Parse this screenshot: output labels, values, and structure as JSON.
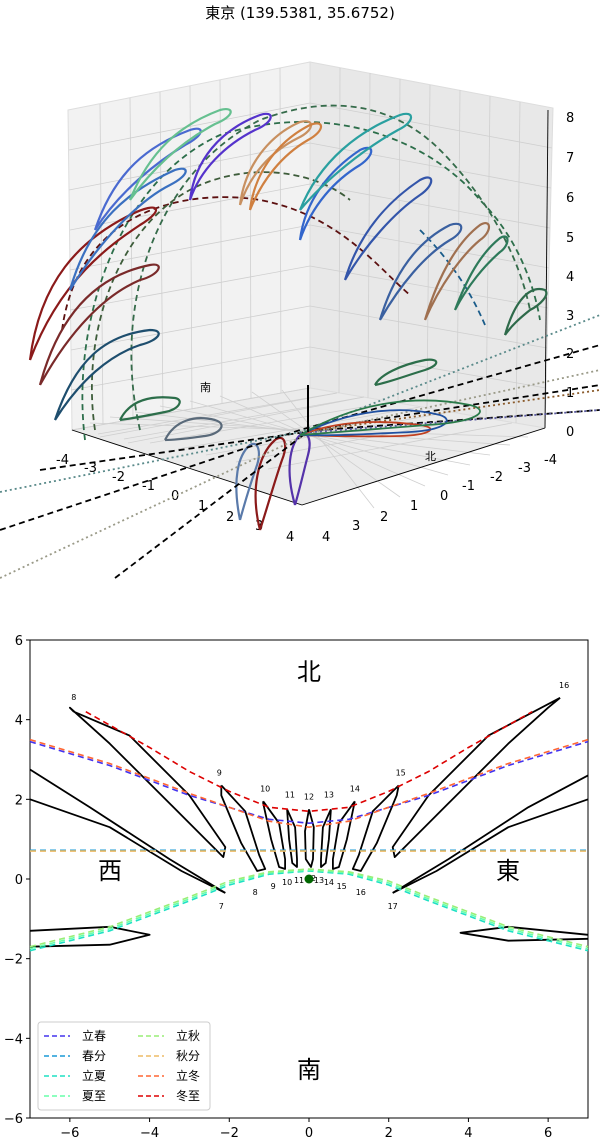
{
  "chart_data": [
    {
      "type": "3d-line",
      "title": "東京 (139.5381, 35.6752)",
      "direction_labels": {
        "south": "南",
        "north": "北"
      },
      "x_ticks": [
        "-4",
        "-3",
        "-2",
        "-1",
        "0",
        "1",
        "2",
        "3",
        "4"
      ],
      "y_ticks": [
        "-4",
        "-3",
        "-2",
        "-1",
        "0",
        "1",
        "2",
        "3",
        "4"
      ],
      "z_ticks": [
        "0",
        "1",
        "2",
        "3",
        "4",
        "5",
        "6",
        "7",
        "8"
      ],
      "zlim": [
        0,
        8
      ]
    },
    {
      "type": "line",
      "xlim": [
        -7,
        7
      ],
      "ylim": [
        -6,
        6
      ],
      "x_ticks": [
        -6,
        -4,
        -2,
        0,
        2,
        4,
        6
      ],
      "y_ticks": [
        -6,
        -4,
        -2,
        0,
        2,
        4,
        6
      ],
      "direction_labels": {
        "north": "北",
        "south": "南",
        "west": "西",
        "east": "東"
      },
      "hour_labels_upper": [
        {
          "text": "8",
          "x": -5.9,
          "y": 4.5
        },
        {
          "text": "9",
          "x": -2.25,
          "y": 2.6
        },
        {
          "text": "10",
          "x": -1.1,
          "y": 2.2
        },
        {
          "text": "11",
          "x": -0.48,
          "y": 2.05
        },
        {
          "text": "12",
          "x": 0.0,
          "y": 2.0
        },
        {
          "text": "13",
          "x": 0.5,
          "y": 2.05
        },
        {
          "text": "14",
          "x": 1.15,
          "y": 2.2
        },
        {
          "text": "15",
          "x": 2.3,
          "y": 2.6
        },
        {
          "text": "16",
          "x": 6.4,
          "y": 4.8
        }
      ],
      "hour_labels_lower": [
        {
          "text": "7",
          "x": -2.2,
          "y": -0.75
        },
        {
          "text": "8",
          "x": -1.35,
          "y": -0.4
        },
        {
          "text": "9",
          "x": -0.9,
          "y": -0.25
        },
        {
          "text": "10",
          "x": -0.55,
          "y": -0.15
        },
        {
          "text": "11",
          "x": -0.25,
          "y": -0.1
        },
        {
          "text": "12",
          "x": 0.05,
          "y": -0.05
        },
        {
          "text": "13",
          "x": 0.25,
          "y": -0.1
        },
        {
          "text": "14",
          "x": 0.5,
          "y": -0.15
        },
        {
          "text": "15",
          "x": 0.82,
          "y": -0.25
        },
        {
          "text": "16",
          "x": 1.3,
          "y": -0.4
        },
        {
          "text": "17",
          "x": 2.1,
          "y": -0.75
        }
      ],
      "series": [
        {
          "name": "立春",
          "color": "#4433ee",
          "x": [
            -7,
            -5,
            -3,
            -1,
            0,
            1,
            3,
            5,
            7
          ],
          "y": [
            3.45,
            2.85,
            2.1,
            1.5,
            1.4,
            1.5,
            2.1,
            2.85,
            3.45
          ]
        },
        {
          "name": "春分",
          "color": "#1a9ad6",
          "x": [
            -7,
            0,
            7
          ],
          "y": [
            0.72,
            0.72,
            0.72
          ]
        },
        {
          "name": "立夏",
          "color": "#1ee0c4",
          "x": [
            -7,
            -5,
            -3,
            -2,
            -1,
            0,
            1,
            2,
            3,
            5,
            7
          ],
          "y": [
            -1.8,
            -1.3,
            -0.55,
            -0.15,
            0.12,
            0.2,
            0.12,
            -0.15,
            -0.55,
            -1.3,
            -1.8
          ]
        },
        {
          "name": "夏至",
          "color": "#66ffaa",
          "x": [
            -7,
            -5,
            -3,
            -2,
            -1,
            0,
            1,
            2,
            3,
            5,
            7
          ],
          "y": [
            -1.75,
            -1.25,
            -0.5,
            -0.1,
            0.15,
            0.22,
            0.15,
            -0.1,
            -0.5,
            -1.25,
            -1.75
          ]
        },
        {
          "name": "立秋",
          "color": "#99ee77",
          "x": [
            -7,
            -5,
            -3,
            -2,
            -1,
            0,
            1,
            2,
            3,
            5,
            7
          ],
          "y": [
            -1.7,
            -1.2,
            -0.45,
            -0.05,
            0.18,
            0.25,
            0.18,
            -0.05,
            -0.45,
            -1.2,
            -1.7
          ]
        },
        {
          "name": "秋分",
          "color": "#eebb66",
          "x": [
            -7,
            0,
            7
          ],
          "y": [
            0.7,
            0.7,
            0.7
          ]
        },
        {
          "name": "立冬",
          "color": "#ff6633",
          "x": [
            -7,
            -5,
            -3,
            -1,
            0,
            1,
            3,
            5,
            7
          ],
          "y": [
            3.5,
            2.9,
            2.15,
            1.45,
            1.3,
            1.45,
            2.15,
            2.9,
            3.5
          ]
        },
        {
          "name": "冬至",
          "color": "#dd0000",
          "x": [
            -5.6,
            -4,
            -3,
            -2,
            -1,
            0,
            1,
            2,
            3,
            4,
            5.6
          ],
          "y": [
            4.2,
            3.3,
            2.7,
            2.2,
            1.8,
            1.7,
            1.8,
            2.2,
            2.7,
            3.3,
            4.2
          ]
        }
      ],
      "legend_loc": "lower-left",
      "dot_color": "#006600"
    }
  ]
}
